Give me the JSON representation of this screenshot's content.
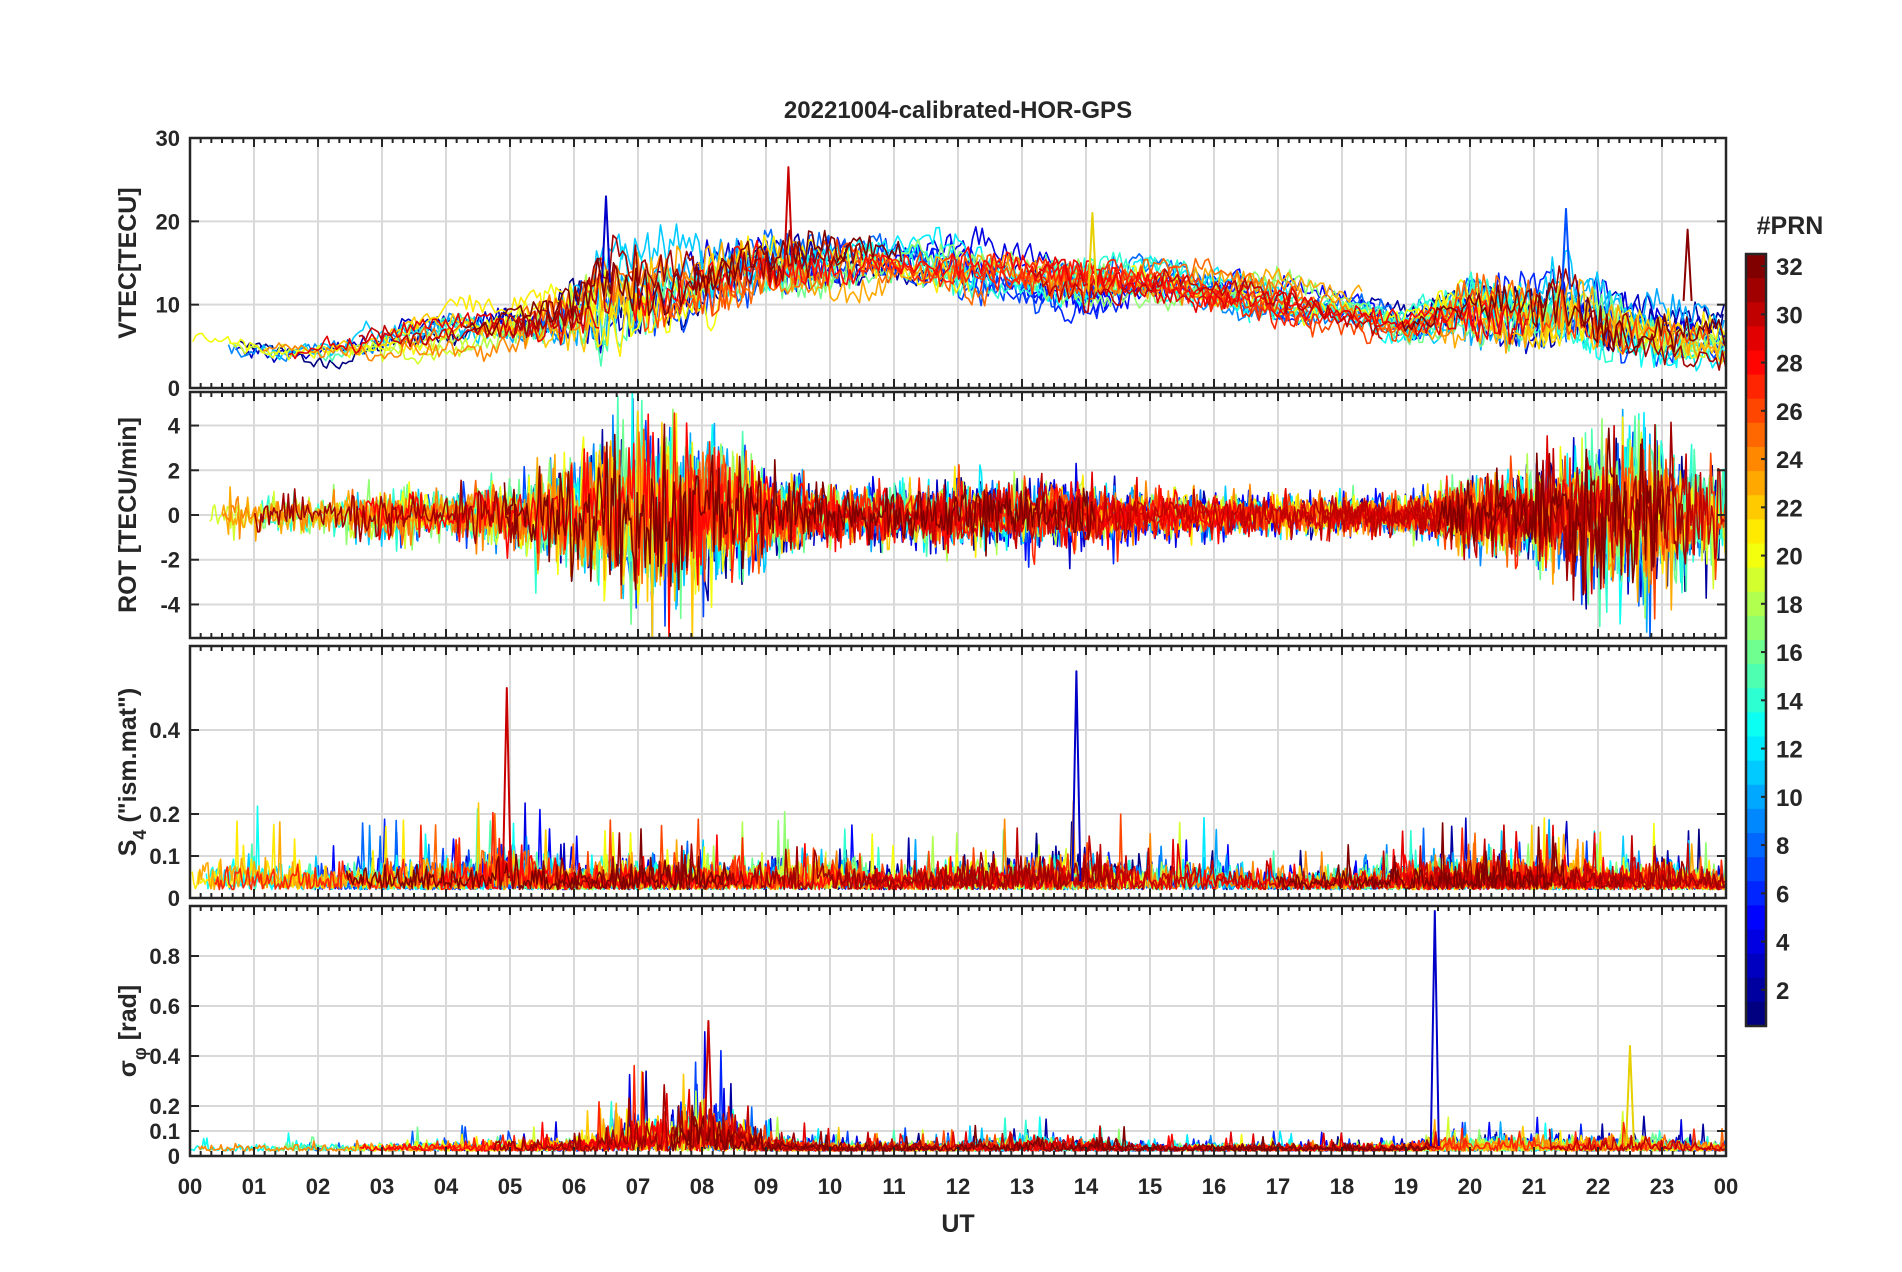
{
  "chart_data": {
    "type": "line",
    "title": "20221004-calibrated-HOR-GPS",
    "xlabel": "UT",
    "x_ticks": [
      "00",
      "01",
      "02",
      "03",
      "04",
      "05",
      "06",
      "07",
      "08",
      "09",
      "10",
      "11",
      "12",
      "13",
      "14",
      "15",
      "16",
      "17",
      "18",
      "19",
      "20",
      "21",
      "22",
      "23",
      "00"
    ],
    "xlim": [
      0,
      24
    ],
    "grid": true,
    "colorbar": {
      "label": "#PRN",
      "range": [
        1,
        32
      ],
      "ticks": [
        2,
        4,
        6,
        8,
        10,
        12,
        14,
        16,
        18,
        20,
        22,
        24,
        26,
        28,
        30,
        32
      ],
      "colormap": "jet",
      "location": "right"
    },
    "panels": [
      {
        "ylabel": "VTEC[TECU]",
        "ylim": [
          0,
          30
        ],
        "yticks": [
          0,
          10,
          20,
          30
        ],
        "envelope": {
          "x": [
            0,
            1,
            2,
            3,
            4,
            5,
            6,
            6.5,
            7,
            8,
            9,
            10,
            11,
            12,
            13,
            14,
            15,
            16,
            17,
            18,
            19,
            20,
            21,
            21.5,
            22,
            23,
            24
          ],
          "base": [
            5,
            4.5,
            4.5,
            5.5,
            6.5,
            7,
            8,
            9,
            10,
            12,
            14,
            14,
            15,
            14,
            13,
            12,
            12,
            11,
            10,
            9,
            7,
            9,
            8,
            9,
            7,
            6,
            5
          ],
          "amp": [
            3,
            2,
            2,
            3,
            3,
            4,
            8,
            13,
            10,
            8,
            8,
            6,
            4,
            6,
            5,
            6,
            4,
            4,
            4,
            3,
            3,
            7,
            8,
            10,
            8,
            7,
            5
          ]
        },
        "annotations": [
          {
            "x": 6.5,
            "y": 23
          },
          {
            "x": 9.35,
            "y": 26.5
          },
          {
            "x": 14.1,
            "y": 21
          },
          {
            "x": 21.5,
            "y": 21.5
          },
          {
            "x": 23.4,
            "y": 19
          }
        ]
      },
      {
        "ylabel": "ROT [TECU/min]",
        "ylim": [
          -5.5,
          5.5
        ],
        "yticks": [
          -4,
          -2,
          0,
          2,
          4
        ],
        "envelope": {
          "x": [
            0,
            2,
            3,
            4,
            5,
            6,
            6.5,
            7,
            7.5,
            8,
            9,
            10,
            11,
            12,
            13,
            14,
            15,
            16,
            17,
            18,
            19,
            20,
            21,
            22,
            22.5,
            23,
            24
          ],
          "amp": [
            0.8,
            0.8,
            1.2,
            1,
            1.5,
            2.5,
            3.5,
            4,
            4.5,
            3.5,
            2,
            1.2,
            1.2,
            1.5,
            1.5,
            1.3,
            1,
            0.9,
            0.8,
            0.8,
            0.8,
            1.5,
            2,
            3,
            3.5,
            3,
            2
          ]
        }
      },
      {
        "ylabel": "S4 (\"ism.mat\")",
        "ylabel_main": "S",
        "ylabel_sub": "4",
        "ylabel_rest": " (\"ism.mat\")",
        "ylim": [
          0,
          0.6
        ],
        "yticks": [
          0,
          0.1,
          0.2,
          0.4
        ],
        "ytick_labels": [
          "0",
          "0.1",
          "0.2",
          "0.4"
        ],
        "envelope": {
          "x": [
            0,
            1,
            2,
            3,
            4,
            5,
            6,
            7,
            8,
            9,
            10,
            11,
            12,
            13,
            14,
            15,
            16,
            17,
            18,
            19,
            20,
            21,
            22,
            23,
            24
          ],
          "amp": [
            0.12,
            0.15,
            0.1,
            0.12,
            0.1,
            0.18,
            0.1,
            0.12,
            0.12,
            0.12,
            0.14,
            0.08,
            0.12,
            0.12,
            0.15,
            0.1,
            0.12,
            0.08,
            0.08,
            0.12,
            0.12,
            0.12,
            0.1,
            0.12,
            0.08
          ]
        },
        "annotations": [
          {
            "x": 13.85,
            "y": 0.54
          },
          {
            "x": 4.95,
            "y": 0.5
          }
        ]
      },
      {
        "ylabel": "σφ [rad]",
        "ylabel_main": "σ",
        "ylabel_sub": "φ",
        "ylabel_rest": " [rad]",
        "ylim": [
          0,
          1.0
        ],
        "yticks": [
          0,
          0.1,
          0.2,
          0.4,
          0.6,
          0.8
        ],
        "ytick_labels": [
          "0",
          "0.1",
          "0.2",
          "0.4",
          "0.6",
          "0.8"
        ],
        "envelope": {
          "x": [
            0,
            3,
            6,
            6.5,
            7,
            7.5,
            8,
            8.5,
            9,
            10,
            12,
            13,
            14,
            15,
            19,
            19.5,
            20,
            21,
            22,
            22.5,
            23,
            24
          ],
          "amp": [
            0.05,
            0.06,
            0.08,
            0.15,
            0.25,
            0.25,
            0.35,
            0.25,
            0.1,
            0.06,
            0.06,
            0.1,
            0.08,
            0.05,
            0.05,
            0.1,
            0.08,
            0.1,
            0.08,
            0.12,
            0.1,
            0.06
          ]
        },
        "annotations": [
          {
            "x": 19.45,
            "y": 0.98
          },
          {
            "x": 8.1,
            "y": 0.54
          },
          {
            "x": 22.5,
            "y": 0.44
          }
        ]
      }
    ]
  }
}
